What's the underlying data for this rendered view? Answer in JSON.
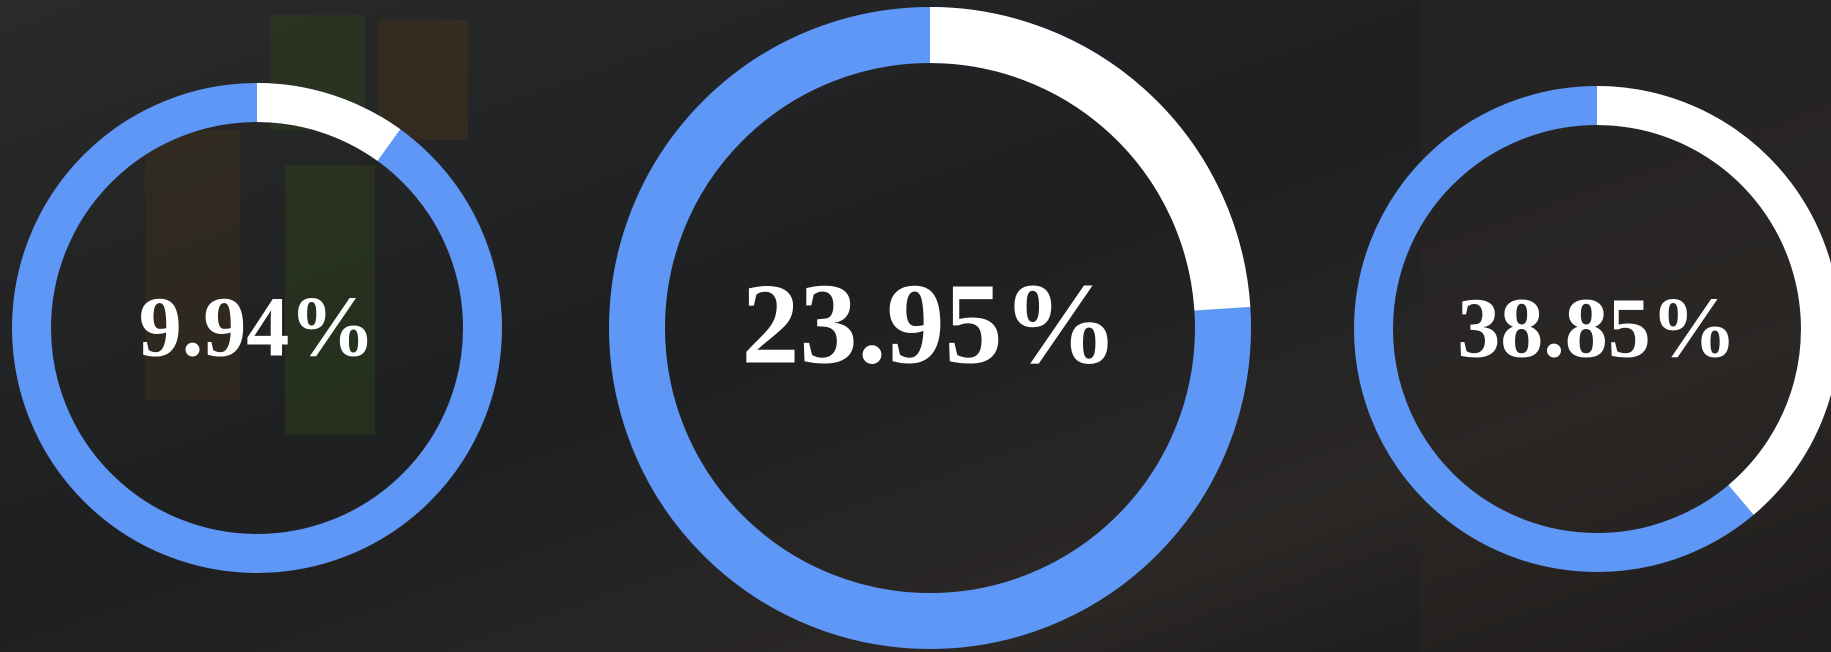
{
  "chart_data": {
    "type": "gauge",
    "values": [
      9.94,
      23.95,
      38.85
    ],
    "value_labels": [
      "9.94%",
      "23.95%",
      "38.85%"
    ],
    "color": "#ffffff",
    "track_color": "#5e97f5"
  }
}
